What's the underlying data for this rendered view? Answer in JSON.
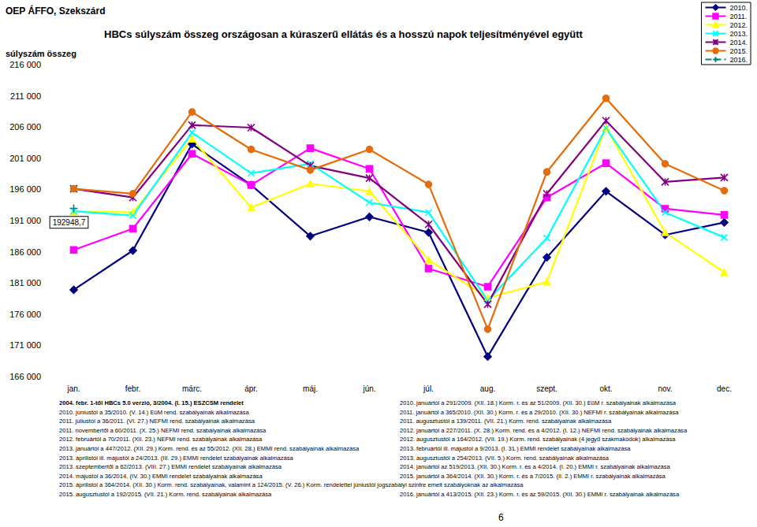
{
  "chart_data": {
    "type": "line",
    "source": "OEP ÁFFO, Szekszárd",
    "title": "HBCs súlyszám összeg országosan a kúraszerű ellátás és a hosszú napok teljesítményével együtt",
    "y_label": "súlyszám összeg",
    "categories": [
      "jan.",
      "febr.",
      "márc.",
      "ápr.",
      "máj.",
      "jún.",
      "júl.",
      "aug.",
      "szept.",
      "okt.",
      "nov.",
      "dec."
    ],
    "ylim": [
      166000,
      216000
    ],
    "yticks": [
      {
        "value": 166000,
        "label": "166 000"
      },
      {
        "value": 171000,
        "label": "171 000"
      },
      {
        "value": 176000,
        "label": "176 000"
      },
      {
        "value": 181000,
        "label": "181 000"
      },
      {
        "value": 186000,
        "label": "186 000"
      },
      {
        "value": 191000,
        "label": "191 000"
      },
      {
        "value": 196000,
        "label": "196 000"
      },
      {
        "value": 201000,
        "label": "201 000"
      },
      {
        "value": 206000,
        "label": "206 000"
      },
      {
        "value": 211000,
        "label": "211 000"
      },
      {
        "value": 216000,
        "label": "216 000"
      }
    ],
    "grid": false,
    "legend": "upper right",
    "series": [
      {
        "name": "2010.",
        "color": "#000080",
        "marker": "diamond",
        "line_style": "solid",
        "values": [
          179900,
          186200,
          203250,
          196700,
          188500,
          191600,
          189100,
          169200,
          185100,
          195700,
          188700,
          190700
        ]
      },
      {
        "name": "2011.",
        "color": "#ff00ff",
        "marker": "square",
        "line_style": "solid",
        "values": [
          186300,
          189700,
          201700,
          196700,
          202600,
          199300,
          183300,
          180400,
          194700,
          200200,
          192900,
          191900
        ]
      },
      {
        "name": "2012.",
        "color": "#ffff00",
        "marker": "triangle",
        "line_style": "solid",
        "values": [
          192500,
          192300,
          204100,
          193100,
          196900,
          195700,
          184700,
          178600,
          181200,
          205900,
          189100,
          182700
        ]
      },
      {
        "name": "2013.",
        "color": "#00ffff",
        "marker": "x",
        "line_style": "solid",
        "values": [
          192500,
          191800,
          205100,
          198600,
          200100,
          193900,
          192300,
          178200,
          188200,
          205800,
          192300,
          188300
        ]
      },
      {
        "name": "2014.",
        "color": "#800080",
        "marker": "asterisk",
        "line_style": "solid",
        "values": [
          196100,
          194700,
          206300,
          205900,
          199800,
          197800,
          190400,
          177600,
          195300,
          207000,
          197200,
          197900
        ]
      },
      {
        "name": "2015.",
        "color": "#e46c0a",
        "marker": "circle",
        "line_style": "solid",
        "values": [
          196100,
          195300,
          208400,
          202400,
          199100,
          202400,
          196800,
          173600,
          198800,
          210600,
          200100,
          195800
        ]
      },
      {
        "name": "2016.",
        "color": "#008080",
        "marker": "plus",
        "line_style": "dashed",
        "data_labels": true,
        "values": [
          192948.7,
          null,
          null,
          null,
          null,
          null,
          null,
          null,
          null,
          null,
          null,
          null
        ],
        "value_labels": [
          "192948,7",
          null,
          null,
          null,
          null,
          null,
          null,
          null,
          null,
          null,
          null,
          null
        ]
      }
    ]
  },
  "footnotes": [
    {
      "left": "2004. febr. 1-től HBCs 5.0 verzió, 3/2004. (I. 15.) ESZCSM rendelet",
      "right": "2010. januártól a 291/2009. (XII. 18.) Korm. r. és az 51/2009. (XII. 30.) EüM r. szabályainak alkalmazása"
    },
    {
      "left": "2010. júniustól a 35/2010. (V. 14.) EüM rend. szabályainak alkalmazása",
      "right": "2011. januártól a 365/2010. (XII. 30.) Korm. r. és a 29/2010. (XII. 30.) NEFMI r. szabályainak alkalmazása"
    },
    {
      "left": "2011. júliustól a 36/2011. (VI. 27.) NEFMI rend. szabályainak alkalmazása",
      "right": "2011. augusztustól a 139/2011. (VII. 21.) Korm. rend. szabályainak alkalmazása"
    },
    {
      "left": "2011. novembertől a 60/2011. (X. 25.) NEFMI rend. szabályainak alkalmazása",
      "right": "2012. januártól a 227/2011. (X. 28.) Korm. rend. és a 4/2012. (I. 12.) NEFMI rend. szabályainak alkalmazása"
    },
    {
      "left": "2012. februártól a 70/2011. (XII. 23.) NEFMI rend. szabályainak alkalmazása",
      "right": "2012. augusztustól a 164/2012. (VII. 19.) Korm. rend. szabályainak (4 jegyű szakmakódok) alkalmazása"
    },
    {
      "left": "2013. januártól a 447/2012. (XII. 29.) Korm. rend. és az 55/2012. (XII. 28.) EMMI rend. szabályainak alkalmazása",
      "right": "2013. februártól ill. májustól a 9/2013. (I. 31.) EMMI rendelet szabályainak alkalmazása"
    },
    {
      "left": "2013. áprilistól ill. májustól a 24/2013. (III. 29.) EMMI rendelet szabályainak alkalmazása",
      "right": "2013. augusztustól a 254/2013. (VII. 5.) Korm. rend. szabályainak alkalmazása"
    },
    {
      "left": "2013. szeptembertől a 62/2013. (VIII. 27.) EMMI rendelet szabályainak alkalmazása",
      "right": "2014. januártól az 519/2013. (XII. 30.) Korm. r. és a 4/2014. (I. 20.) EMMI r. szabályainak alkalmazása"
    },
    {
      "left": "2014. májustól a 36/2014. (IV. 30.) EMMI rendelet szabályainak alkalmazása",
      "right": "2015. januártól a 364/2014. (XII. 30.) Korm. r. és a 7/2015. (II. 2.) EMMI r. szabályainak alkalmazása"
    },
    {
      "left": "2015. áprilistól a 364/2014. (XII. 30.) Korm. rend. szabályainak, valamint a 124/2015. (V. 26.) Korm. rendelettel júniustól jogszabályi szintre emelt szabályoknak az alkalmazása"
    },
    {
      "left": "2015. augusztustól a 192/2015. (VII. 21.) Korm. rend. szabályainak alkalmazása",
      "right": "2016. januártól a 413/2015. (XII. 23.) Korm. r. és az 59/2015. (XII. 30.) EMMI r. szabályainak alkalmazása"
    }
  ],
  "page_number": "6"
}
